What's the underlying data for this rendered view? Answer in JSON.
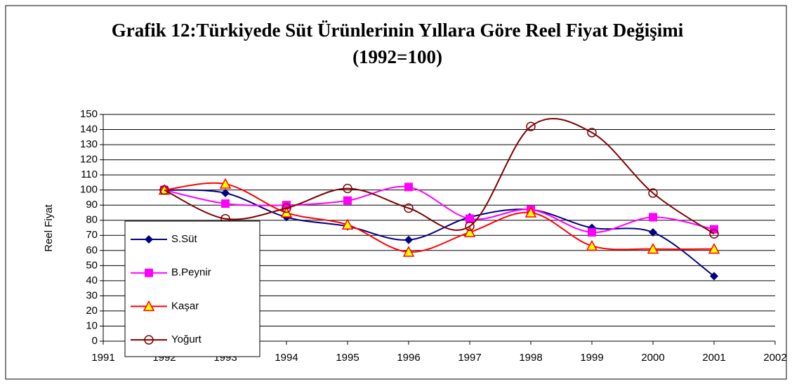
{
  "chart_data": {
    "type": "line",
    "title": "Grafik 12:Türkiyede Süt Ürünlerinin Yıllara Göre Reel Fiyat Değişimi (1992=100)",
    "y_label": "Reel Fiyat",
    "x": [
      1992,
      1993,
      1994,
      1995,
      1996,
      1997,
      1998,
      1999,
      2000,
      2001
    ],
    "series": [
      {
        "name": "S.Süt",
        "color": "#000080",
        "marker": "diamond",
        "values": [
          100,
          98,
          82,
          76,
          67,
          82,
          87,
          75,
          72,
          43
        ]
      },
      {
        "name": "B.Peynir",
        "color": "#ff00ff",
        "marker": "square",
        "values": [
          100,
          91,
          90,
          93,
          102,
          81,
          87,
          72,
          82,
          74
        ]
      },
      {
        "name": "Kaşar",
        "color": "#ff0000",
        "marker": "triangle",
        "values": [
          100,
          104,
          85,
          77,
          59,
          72,
          85,
          63,
          61,
          61
        ]
      },
      {
        "name": "Yoğurt",
        "color": "#800000",
        "marker": "circle",
        "values": [
          100,
          81,
          88,
          101,
          88,
          76,
          142,
          138,
          98,
          71
        ]
      }
    ],
    "xlim": [
      1991,
      2002
    ],
    "xticks": [
      1991,
      1992,
      1993,
      1994,
      1995,
      1996,
      1997,
      1998,
      1999,
      2000,
      2001,
      2002
    ],
    "ylim": [
      0,
      150
    ],
    "yticks": [
      0,
      10,
      20,
      30,
      40,
      50,
      60,
      70,
      80,
      90,
      100,
      110,
      120,
      130,
      140,
      150
    ],
    "grid": true,
    "smooth": true
  }
}
